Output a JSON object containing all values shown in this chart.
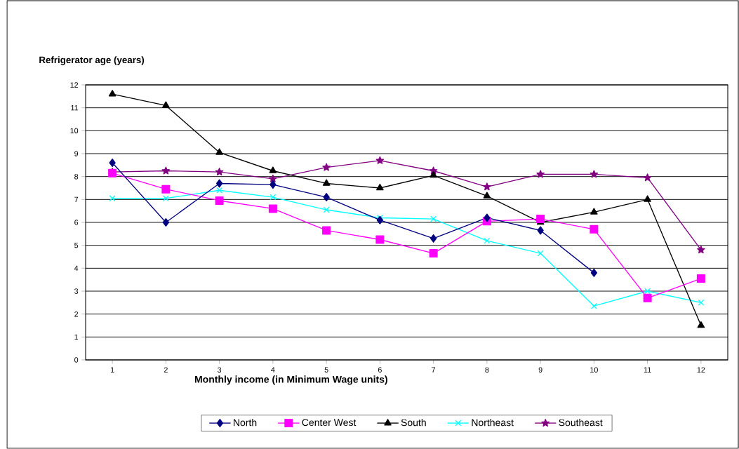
{
  "chart_data": {
    "type": "line",
    "xlabel": "Monthly income (in  Minimum Wage units)",
    "ylabel": "Refrigerator age (years)",
    "categories": [
      "1",
      "2",
      "3",
      "4",
      "5",
      "6",
      "7",
      "8",
      "9",
      "10",
      "11",
      "12"
    ],
    "ylim": [
      0,
      12
    ],
    "yticks": [
      0,
      1,
      2,
      3,
      4,
      5,
      6,
      7,
      8,
      9,
      10,
      11,
      12
    ],
    "grid": "y",
    "legend": "bottom",
    "line_style": "solid",
    "series": [
      {
        "name": "North",
        "color": "#000080",
        "marker": "diamond",
        "values": [
          8.6,
          6.0,
          7.7,
          7.65,
          7.1,
          6.1,
          5.3,
          6.2,
          5.65,
          3.8,
          null,
          null
        ]
      },
      {
        "name": "Center  West",
        "color": "#ff00ff",
        "marker": "square",
        "values": [
          8.15,
          7.45,
          6.95,
          6.6,
          5.65,
          5.25,
          4.65,
          6.05,
          6.15,
          5.7,
          2.7,
          3.55
        ]
      },
      {
        "name": "South",
        "color": "#000000",
        "marker": "triangle",
        "values": [
          11.6,
          11.1,
          9.05,
          8.25,
          7.7,
          7.5,
          8.05,
          7.15,
          6.0,
          6.45,
          7.0,
          1.5
        ]
      },
      {
        "name": "Northeast",
        "color": "#00ffff",
        "marker": "cross",
        "values": [
          7.05,
          7.05,
          7.4,
          7.1,
          6.55,
          6.2,
          6.15,
          5.2,
          4.65,
          2.35,
          3.0,
          2.5
        ]
      },
      {
        "name": "Southeast",
        "color": "#800080",
        "marker": "star",
        "values": [
          8.2,
          8.25,
          8.2,
          7.9,
          8.4,
          8.7,
          8.25,
          7.55,
          8.1,
          8.1,
          7.95,
          4.8
        ]
      }
    ]
  }
}
